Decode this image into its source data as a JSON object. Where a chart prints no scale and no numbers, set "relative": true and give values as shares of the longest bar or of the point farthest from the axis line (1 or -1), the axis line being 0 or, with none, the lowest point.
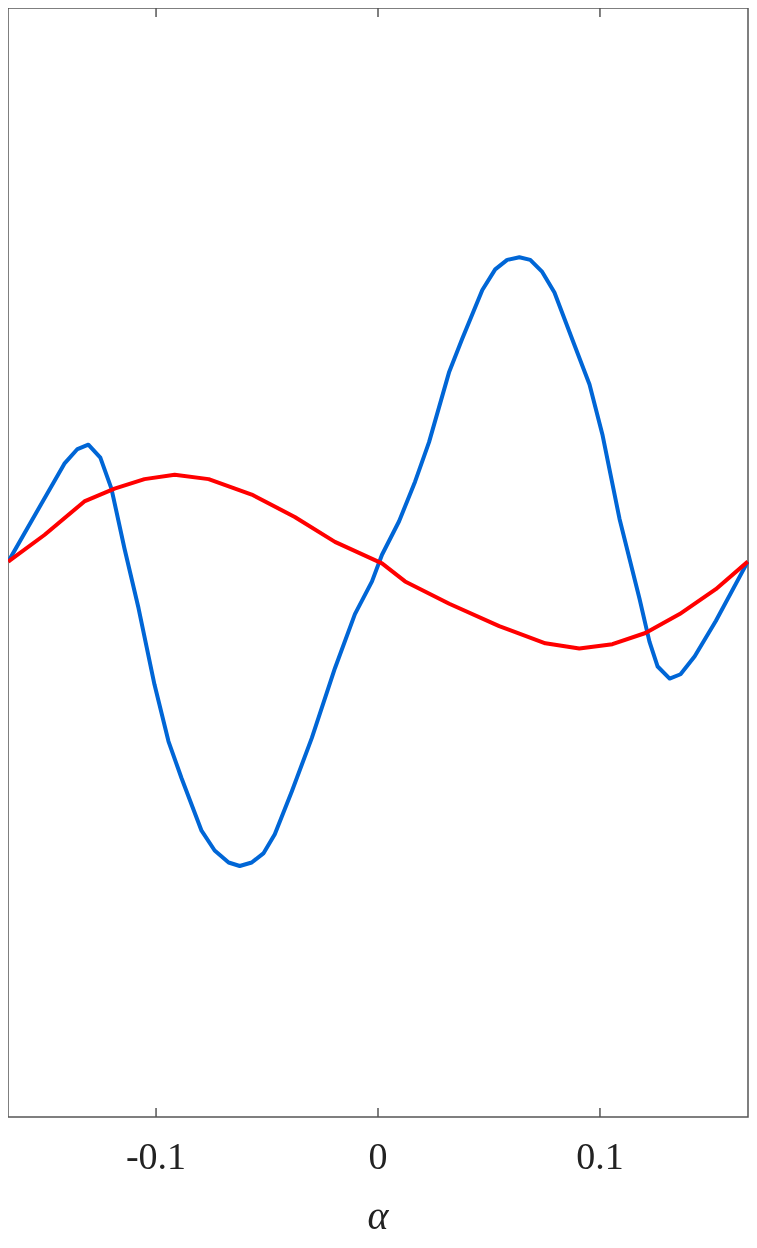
{
  "chart_data": {
    "type": "line",
    "xlabel": "α",
    "relative": true,
    "xlim": [
      -0.1667,
      0.1667
    ],
    "xticks": [
      -0.1,
      0,
      0.1
    ],
    "grid": false,
    "marker": "none",
    "line_style": "solid",
    "series": [
      {
        "color": "#0066d6",
        "x": [
          -0.1666,
          -0.1413,
          -0.1354,
          -0.1305,
          -0.1251,
          -0.1201,
          -0.1142,
          -0.1079,
          -0.1007,
          -0.0944,
          -0.0885,
          -0.0795,
          -0.0736,
          -0.0673,
          -0.0623,
          -0.0569,
          -0.0515,
          -0.0465,
          -0.0388,
          -0.0298,
          -0.0194,
          -0.0104,
          -0.0027,
          0.0018,
          0.0095,
          0.0167,
          0.023,
          0.0321,
          0.0379,
          0.047,
          0.0528,
          0.0582,
          0.0637,
          0.0686,
          0.074,
          0.0795,
          0.0885,
          0.0953,
          0.1011,
          0.1088,
          0.1178,
          0.1223,
          0.126,
          0.1314,
          0.1363,
          0.1427,
          0.1522,
          0.1666
        ],
        "values": [
          0.646,
          0.76,
          0.777,
          0.782,
          0.767,
          0.731,
          0.661,
          0.592,
          0.503,
          0.437,
          0.394,
          0.333,
          0.31,
          0.296,
          0.292,
          0.296,
          0.307,
          0.329,
          0.379,
          0.441,
          0.522,
          0.585,
          0.623,
          0.654,
          0.693,
          0.739,
          0.785,
          0.867,
          0.905,
          0.962,
          0.986,
          0.997,
          1,
          0.997,
          0.983,
          0.959,
          0.898,
          0.852,
          0.794,
          0.696,
          0.603,
          0.553,
          0.524,
          0.51,
          0.515,
          0.536,
          0.577,
          0.646
        ]
      },
      {
        "color": "#ff0000",
        "x": [
          -0.1666,
          -0.1503,
          -0.1323,
          -0.1187,
          -0.1052,
          -0.0916,
          -0.0763,
          -0.0569,
          -0.0375,
          -0.0194,
          0.0018,
          0.0122,
          0.0321,
          0.0546,
          0.0754,
          0.0907,
          0.1056,
          0.1205,
          0.1359,
          0.1522,
          0.1666
        ],
        "values": [
          0.646,
          0.677,
          0.716,
          0.731,
          0.742,
          0.747,
          0.742,
          0.724,
          0.698,
          0.669,
          0.644,
          0.623,
          0.597,
          0.571,
          0.551,
          0.545,
          0.55,
          0.563,
          0.585,
          0.614,
          0.646
        ]
      }
    ]
  }
}
